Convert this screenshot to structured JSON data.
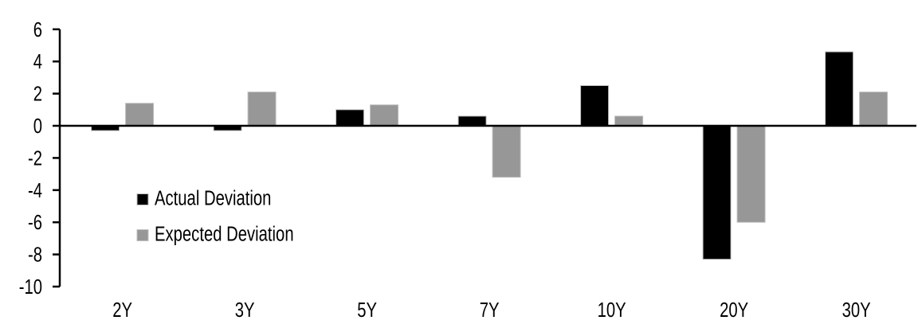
{
  "chart_data": {
    "type": "bar",
    "title": "",
    "categories": [
      "2Y",
      "3Y",
      "5Y",
      "7Y",
      "10Y",
      "20Y",
      "30Y"
    ],
    "series": [
      {
        "name": "Actual Deviation",
        "color": "#000000",
        "values": [
          -0.3,
          -0.3,
          1.0,
          0.6,
          2.5,
          -8.3,
          4.6
        ]
      },
      {
        "name": "Expected Deviation",
        "color": "#979797",
        "values": [
          1.4,
          2.1,
          1.3,
          -3.2,
          0.6,
          -6.0,
          2.1
        ]
      }
    ],
    "xlabel": "",
    "ylabel": "",
    "ylim": [
      -10,
      6
    ],
    "yticks": [
      6,
      4,
      2,
      0,
      -2,
      -4,
      -6,
      -8,
      -10
    ],
    "grid": false,
    "legend_position": "inside-left",
    "legend": [
      "Actual Deviation",
      "Expected Deviation"
    ]
  },
  "colors": {
    "background": "#ffffff",
    "axis": "#000000",
    "text": "#000000",
    "bar_border": "#bfbfbf"
  }
}
